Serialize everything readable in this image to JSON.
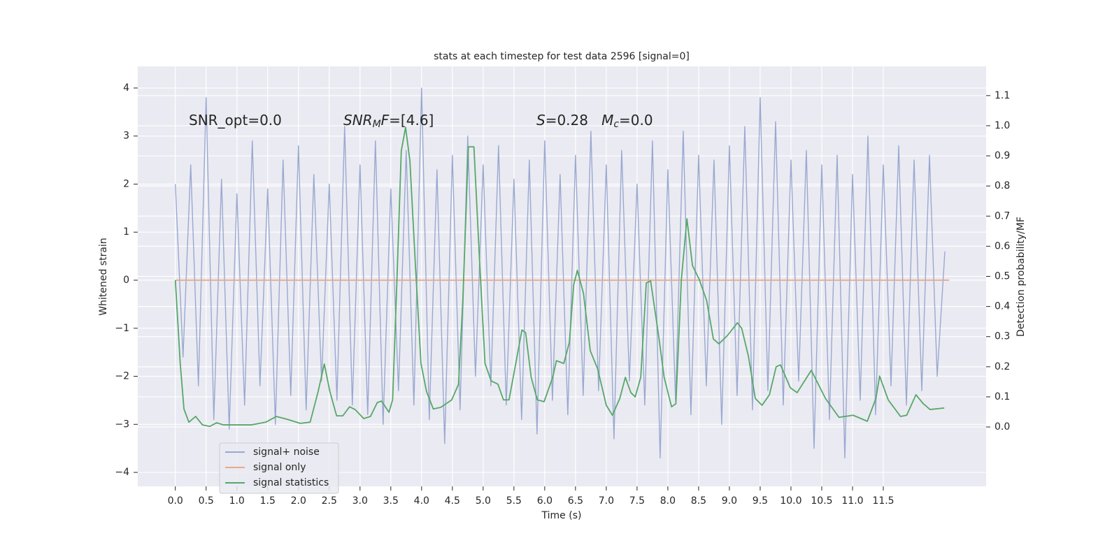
{
  "chart_data": {
    "type": "line",
    "title": "stats at each timestep for test data 2596 [signal=0]",
    "xlabel": "Time (s)",
    "ylabel": "Whitened strain",
    "y2label": "Detection probability/MF",
    "xlim": [
      -0.61,
      13.17
    ],
    "ylim": [
      -4.29,
      4.45
    ],
    "y2lim": [
      -0.197,
      1.197
    ],
    "grid": true,
    "legend": "lower left",
    "xticks": [
      {
        "value": 0,
        "label": "0.0"
      },
      {
        "value": 0.5,
        "label": "0.5"
      },
      {
        "value": 1,
        "label": "1.0"
      },
      {
        "value": 1.5,
        "label": "1.5"
      },
      {
        "value": 2,
        "label": "2.0"
      },
      {
        "value": 2.5,
        "label": "2.5"
      },
      {
        "value": 3,
        "label": "3.0"
      },
      {
        "value": 3.5,
        "label": "3.5"
      },
      {
        "value": 4,
        "label": "4.0"
      },
      {
        "value": 4.5,
        "label": "4.5"
      },
      {
        "value": 5,
        "label": "5.0"
      },
      {
        "value": 5.5,
        "label": "5.5"
      },
      {
        "value": 6,
        "label": "6.0"
      },
      {
        "value": 6.5,
        "label": "6.5"
      },
      {
        "value": 7,
        "label": "7.0"
      },
      {
        "value": 7.5,
        "label": "7.5"
      },
      {
        "value": 8,
        "label": "8.0"
      },
      {
        "value": 8.5,
        "label": "8.5"
      },
      {
        "value": 9,
        "label": "9.0"
      },
      {
        "value": 9.5,
        "label": "9.5"
      },
      {
        "value": 10,
        "label": "10.0"
      },
      {
        "value": 10.5,
        "label": "10.5"
      },
      {
        "value": 11,
        "label": "11.0"
      },
      {
        "value": 11.5,
        "label": "11.5"
      }
    ],
    "yticks": [
      {
        "value": -4,
        "label": "−4"
      },
      {
        "value": -3,
        "label": "−3"
      },
      {
        "value": -2,
        "label": "−2"
      },
      {
        "value": -1,
        "label": "−1"
      },
      0,
      1,
      2,
      3,
      4
    ],
    "y2ticks": [
      {
        "value": 0,
        "label": "0.0"
      },
      {
        "value": 0.1,
        "label": "0.1"
      },
      {
        "value": 0.2,
        "label": "0.2"
      },
      {
        "value": 0.3,
        "label": "0.3"
      },
      {
        "value": 0.4,
        "label": "0.4"
      },
      {
        "value": 0.5,
        "label": "0.5"
      },
      {
        "value": 0.6,
        "label": "0.6"
      },
      {
        "value": 0.7,
        "label": "0.7"
      },
      {
        "value": 0.8,
        "label": "0.8"
      },
      {
        "value": 0.9,
        "label": "0.9"
      },
      {
        "value": 1,
        "label": "1.0"
      },
      {
        "value": 1.1,
        "label": "1.1"
      }
    ],
    "annotations": [
      [
        {
          "text": "SNR_opt=0.0"
        }
      ],
      [
        {
          "text": "SNR",
          "italic": true
        },
        {
          "text": "M",
          "italic": true,
          "sub": true
        },
        {
          "text": "F",
          "italic": true
        },
        {
          "text": "=[4.6]"
        }
      ],
      [
        {
          "text": "S",
          "italic": true
        },
        {
          "text": "=0.28   "
        },
        {
          "text": "M",
          "italic": true
        },
        {
          "text": "c",
          "italic": true,
          "sub": true
        },
        {
          "text": "=0.0"
        }
      ]
    ],
    "series": [
      {
        "name": "signal+ noise",
        "color": "#9aa9d0",
        "x": [
          0,
          0.125,
          0.25,
          0.375,
          0.5,
          0.625,
          0.75,
          0.875,
          1,
          1.125,
          1.25,
          1.375,
          1.5,
          1.625,
          1.75,
          1.875,
          2,
          2.125,
          2.25,
          2.375,
          2.5,
          2.625,
          2.75,
          2.875,
          3,
          3.125,
          3.25,
          3.375,
          3.5,
          3.625,
          3.75,
          3.875,
          4,
          4.125,
          4.25,
          4.375,
          4.5,
          4.625,
          4.75,
          4.875,
          5,
          5.125,
          5.25,
          5.375,
          5.5,
          5.625,
          5.75,
          5.875,
          6,
          6.125,
          6.25,
          6.375,
          6.5,
          6.625,
          6.75,
          6.875,
          7,
          7.125,
          7.25,
          7.375,
          7.5,
          7.625,
          7.75,
          7.875,
          8,
          8.125,
          8.25,
          8.375,
          8.5,
          8.625,
          8.75,
          8.875,
          9,
          9.125,
          9.25,
          9.375,
          9.5,
          9.625,
          9.75,
          9.875,
          10,
          10.125,
          10.25,
          10.375,
          10.5,
          10.625,
          10.75,
          10.875,
          11,
          11.125,
          11.25,
          11.375,
          11.5,
          11.625,
          11.75,
          11.875,
          12,
          12.125,
          12.25,
          12.375,
          12.5
        ],
        "values": [
          2.0,
          -1.6,
          2.4,
          -2.2,
          3.8,
          -2.9,
          2.1,
          -3.1,
          1.8,
          -2.6,
          2.9,
          -2.2,
          1.9,
          -3.0,
          2.5,
          -2.4,
          2.8,
          -2.7,
          2.2,
          -2.1,
          2.0,
          -2.5,
          3.2,
          -2.6,
          2.4,
          -2.8,
          2.9,
          -3.0,
          1.9,
          -2.3,
          2.7,
          -2.6,
          4.0,
          -2.9,
          2.3,
          -3.4,
          2.6,
          -2.7,
          3.0,
          -2.0,
          2.4,
          -2.2,
          2.8,
          -2.6,
          2.1,
          -2.9,
          2.5,
          -3.2,
          2.9,
          -2.5,
          2.2,
          -2.8,
          2.6,
          -2.4,
          3.1,
          -2.3,
          2.4,
          -3.3,
          2.7,
          -2.1,
          2.0,
          -2.6,
          2.9,
          -3.7,
          2.3,
          -2.5,
          3.1,
          -2.8,
          2.6,
          -2.2,
          2.5,
          -3.0,
          2.8,
          -2.4,
          3.2,
          -2.7,
          3.8,
          -2.3,
          3.3,
          -2.6,
          2.5,
          -2.1,
          2.7,
          -3.5,
          2.4,
          -2.9,
          2.6,
          -3.7,
          2.2,
          -2.5,
          3.0,
          -2.8,
          2.4,
          -2.2,
          2.8,
          -2.6,
          2.5,
          -2.3,
          2.6,
          -2.0,
          0.6
        ]
      },
      {
        "name": "signal only",
        "color": "#e8a98a",
        "x": [
          0,
          12.57
        ],
        "values": [
          0,
          0
        ]
      },
      {
        "name": "signal statistics",
        "color": "#55a868",
        "axis": "y2",
        "x": [
          0,
          0.08,
          0.14,
          0.22,
          0.33,
          0.44,
          0.56,
          0.67,
          0.78,
          1.01,
          1.24,
          1.47,
          1.64,
          1.81,
          2.03,
          2.19,
          2.32,
          2.42,
          2.51,
          2.62,
          2.72,
          2.83,
          2.92,
          3.06,
          3.17,
          3.28,
          3.35,
          3.47,
          3.53,
          3.6,
          3.67,
          3.74,
          3.81,
          3.9,
          3.99,
          4.08,
          4.19,
          4.31,
          4.49,
          4.6,
          4.67,
          4.76,
          4.85,
          4.94,
          5.03,
          5.13,
          5.24,
          5.33,
          5.42,
          5.53,
          5.63,
          5.69,
          5.78,
          5.88,
          5.99,
          6.13,
          6.19,
          6.31,
          6.4,
          6.47,
          6.53,
          6.63,
          6.74,
          6.86,
          7.0,
          7.1,
          7.22,
          7.31,
          7.4,
          7.47,
          7.56,
          7.65,
          7.72,
          7.85,
          7.94,
          8.06,
          8.13,
          8.22,
          8.31,
          8.4,
          8.51,
          8.63,
          8.74,
          8.83,
          8.97,
          9.13,
          9.2,
          9.31,
          9.42,
          9.53,
          9.65,
          9.76,
          9.83,
          9.99,
          10.1,
          10.33,
          10.56,
          10.78,
          11.01,
          11.24,
          11.38,
          11.44,
          11.58,
          11.78,
          11.88,
          12.03,
          12.15,
          12.26,
          12.49
        ],
        "values": [
          0.487,
          0.21,
          0.06,
          0.016,
          0.035,
          0.007,
          0.002,
          0.014,
          0.007,
          0.007,
          0.007,
          0.016,
          0.035,
          0.026,
          0.012,
          0.016,
          0.118,
          0.209,
          0.118,
          0.037,
          0.037,
          0.067,
          0.058,
          0.028,
          0.035,
          0.081,
          0.086,
          0.049,
          0.091,
          0.49,
          0.916,
          0.995,
          0.884,
          0.536,
          0.211,
          0.118,
          0.06,
          0.065,
          0.09,
          0.142,
          0.42,
          0.93,
          0.93,
          0.559,
          0.211,
          0.153,
          0.142,
          0.09,
          0.09,
          0.211,
          0.322,
          0.313,
          0.165,
          0.09,
          0.084,
          0.165,
          0.22,
          0.211,
          0.281,
          0.471,
          0.52,
          0.443,
          0.253,
          0.193,
          0.072,
          0.039,
          0.095,
          0.165,
          0.114,
          0.1,
          0.165,
          0.478,
          0.485,
          0.304,
          0.165,
          0.067,
          0.077,
          0.49,
          0.691,
          0.536,
          0.49,
          0.42,
          0.292,
          0.276,
          0.304,
          0.346,
          0.327,
          0.234,
          0.095,
          0.072,
          0.107,
          0.2,
          0.206,
          0.13,
          0.114,
          0.188,
          0.095,
          0.032,
          0.039,
          0.019,
          0.095,
          0.169,
          0.09,
          0.035,
          0.039,
          0.107,
          0.077,
          0.058,
          0.063
        ]
      }
    ]
  }
}
